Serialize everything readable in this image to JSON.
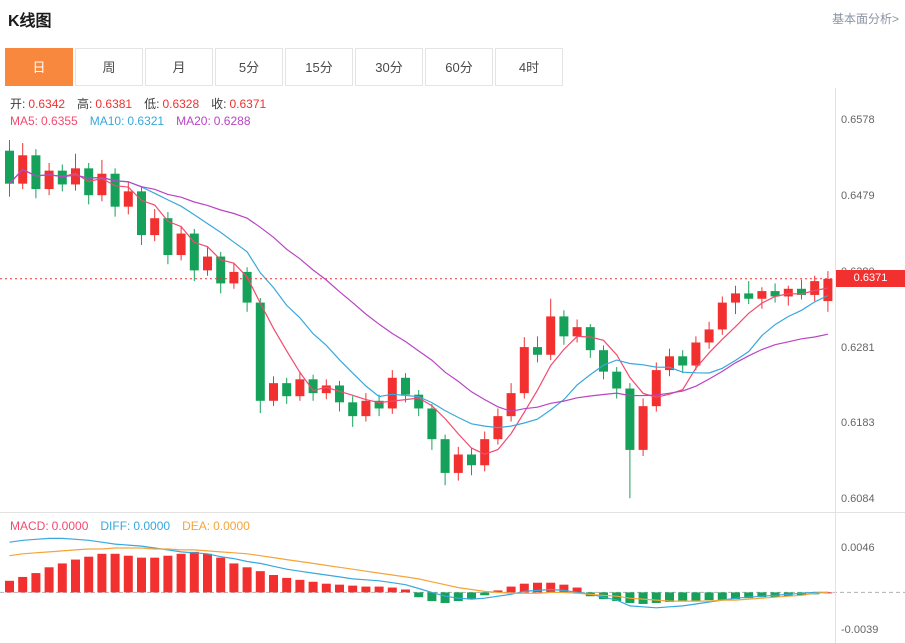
{
  "header": {
    "title": "K线图",
    "analysis_link": "基本面分析>"
  },
  "tabs": [
    {
      "label": "日",
      "active": true
    },
    {
      "label": "周",
      "active": false
    },
    {
      "label": "月",
      "active": false
    },
    {
      "label": "5分",
      "active": false
    },
    {
      "label": "15分",
      "active": false
    },
    {
      "label": "30分",
      "active": false
    },
    {
      "label": "60分",
      "active": false
    },
    {
      "label": "4时",
      "active": false
    }
  ],
  "colors": {
    "up": "#f23030",
    "down": "#16a15a",
    "accent": "#f7883e",
    "ma5": "#f24a6e",
    "ma10": "#38a8dd",
    "ma20": "#b944c4",
    "diff": "#38a8dd",
    "dea": "#f5a43a",
    "price_line": "#f23030",
    "axis_text": "#666666"
  },
  "ohlc_legend": [
    {
      "label": "开:",
      "value": "0.6342"
    },
    {
      "label": "高:",
      "value": "0.6381"
    },
    {
      "label": "低:",
      "value": "0.6328"
    },
    {
      "label": "收:",
      "value": "0.6371"
    }
  ],
  "ma_legend": [
    {
      "label": "MA5:",
      "value": "0.6355",
      "color": "#f24a6e"
    },
    {
      "label": "MA10:",
      "value": "0.6321",
      "color": "#38a8dd"
    },
    {
      "label": "MA20:",
      "value": "0.6288",
      "color": "#b944c4"
    }
  ],
  "price_axis": {
    "ticks": [
      {
        "value": 0.6578,
        "label": "0.6578"
      },
      {
        "value": 0.6479,
        "label": "0.6479"
      },
      {
        "value": 0.638,
        "label": "0.6380"
      },
      {
        "value": 0.6281,
        "label": "0.6281"
      },
      {
        "value": 0.6183,
        "label": "0.6183"
      },
      {
        "value": 0.6084,
        "label": "0.6084"
      }
    ],
    "max": 0.6578,
    "min": 0.6084,
    "current_label": "0.6371",
    "current_value": 0.6371
  },
  "macd_panel": {
    "legend": [
      {
        "label": "MACD:",
        "value": "0.0000",
        "color": "#f24a6e"
      },
      {
        "label": "DIFF:",
        "value": "0.0000",
        "color": "#38a8dd"
      },
      {
        "label": "DEA:",
        "value": "0.0000",
        "color": "#f5a43a"
      }
    ],
    "axis": {
      "max": 0.0046,
      "min": -0.0039,
      "ticks": [
        {
          "value": 0.0046,
          "label": "0.0046"
        },
        {
          "value": -0.0039,
          "label": "-0.0039"
        }
      ]
    }
  },
  "chart_data": [
    {
      "type": "candlestick",
      "title": "K线图 (日)",
      "ylim": [
        0.6084,
        0.6578
      ],
      "y_ticks": [
        0.6578,
        0.6479,
        0.638,
        0.6281,
        0.6183,
        0.6084
      ],
      "last_price": 0.6371,
      "ma_periods": [
        5,
        10,
        20
      ],
      "ohlc": [
        [
          0.6538,
          0.6552,
          0.6478,
          0.6495
        ],
        [
          0.6495,
          0.6548,
          0.6488,
          0.6532
        ],
        [
          0.6532,
          0.654,
          0.6476,
          0.6488
        ],
        [
          0.6488,
          0.6522,
          0.648,
          0.6512
        ],
        [
          0.6512,
          0.652,
          0.6485,
          0.6494
        ],
        [
          0.6494,
          0.6534,
          0.6486,
          0.6515
        ],
        [
          0.6515,
          0.6522,
          0.6468,
          0.648
        ],
        [
          0.648,
          0.6526,
          0.6472,
          0.6508
        ],
        [
          0.6508,
          0.6515,
          0.6452,
          0.6465
        ],
        [
          0.6465,
          0.6498,
          0.6455,
          0.6485
        ],
        [
          0.6485,
          0.6492,
          0.6415,
          0.6428
        ],
        [
          0.6428,
          0.6462,
          0.642,
          0.645
        ],
        [
          0.645,
          0.6458,
          0.639,
          0.6402
        ],
        [
          0.6402,
          0.644,
          0.6395,
          0.643
        ],
        [
          0.643,
          0.6436,
          0.6368,
          0.6382
        ],
        [
          0.6382,
          0.6412,
          0.6375,
          0.64
        ],
        [
          0.64,
          0.6406,
          0.6352,
          0.6365
        ],
        [
          0.6365,
          0.6392,
          0.6358,
          0.638
        ],
        [
          0.638,
          0.6386,
          0.6328,
          0.634
        ],
        [
          0.634,
          0.6346,
          0.6196,
          0.6212
        ],
        [
          0.6212,
          0.6244,
          0.6205,
          0.6235
        ],
        [
          0.6235,
          0.6242,
          0.6208,
          0.6218
        ],
        [
          0.6218,
          0.625,
          0.6212,
          0.624
        ],
        [
          0.624,
          0.6246,
          0.6212,
          0.6222
        ],
        [
          0.6222,
          0.624,
          0.6214,
          0.6232
        ],
        [
          0.6232,
          0.6238,
          0.6198,
          0.621
        ],
        [
          0.621,
          0.6218,
          0.6178,
          0.6192
        ],
        [
          0.6192,
          0.6222,
          0.6185,
          0.6212
        ],
        [
          0.6212,
          0.622,
          0.6192,
          0.6202
        ],
        [
          0.6202,
          0.6252,
          0.6195,
          0.6242
        ],
        [
          0.6242,
          0.6248,
          0.621,
          0.622
        ],
        [
          0.622,
          0.6226,
          0.6192,
          0.6202
        ],
        [
          0.6202,
          0.6208,
          0.6148,
          0.6162
        ],
        [
          0.6162,
          0.6168,
          0.6102,
          0.6118
        ],
        [
          0.6118,
          0.6152,
          0.6108,
          0.6142
        ],
        [
          0.6142,
          0.615,
          0.6115,
          0.6128
        ],
        [
          0.6128,
          0.6172,
          0.612,
          0.6162
        ],
        [
          0.6162,
          0.6202,
          0.6155,
          0.6192
        ],
        [
          0.6192,
          0.6235,
          0.6185,
          0.6222
        ],
        [
          0.6222,
          0.6295,
          0.6215,
          0.6282
        ],
        [
          0.6282,
          0.6296,
          0.6262,
          0.6272
        ],
        [
          0.6272,
          0.6345,
          0.6265,
          0.6322
        ],
        [
          0.6322,
          0.633,
          0.6285,
          0.6296
        ],
        [
          0.6296,
          0.6318,
          0.6288,
          0.6308
        ],
        [
          0.6308,
          0.6312,
          0.6268,
          0.6278
        ],
        [
          0.6278,
          0.6284,
          0.624,
          0.625
        ],
        [
          0.625,
          0.6256,
          0.6215,
          0.6228
        ],
        [
          0.6228,
          0.6235,
          0.6085,
          0.6148
        ],
        [
          0.6148,
          0.6215,
          0.614,
          0.6205
        ],
        [
          0.6205,
          0.6262,
          0.6198,
          0.6252
        ],
        [
          0.6252,
          0.628,
          0.6244,
          0.627
        ],
        [
          0.627,
          0.6278,
          0.6248,
          0.6258
        ],
        [
          0.6258,
          0.6296,
          0.6252,
          0.6288
        ],
        [
          0.6288,
          0.6315,
          0.628,
          0.6305
        ],
        [
          0.6305,
          0.6348,
          0.6298,
          0.634
        ],
        [
          0.634,
          0.6362,
          0.6325,
          0.6352
        ],
        [
          0.6352,
          0.6368,
          0.6338,
          0.6345
        ],
        [
          0.6345,
          0.636,
          0.6332,
          0.6355
        ],
        [
          0.6355,
          0.6365,
          0.634,
          0.6348
        ],
        [
          0.6348,
          0.6362,
          0.6336,
          0.6358
        ],
        [
          0.6358,
          0.637,
          0.6344,
          0.635
        ],
        [
          0.635,
          0.6375,
          0.6342,
          0.6368
        ],
        [
          0.6342,
          0.6381,
          0.6328,
          0.6371
        ]
      ]
    },
    {
      "type": "bar",
      "title": "MACD",
      "ylim": [
        -0.0039,
        0.0046
      ],
      "values": [
        0.0012,
        0.0016,
        0.002,
        0.0026,
        0.003,
        0.0034,
        0.0037,
        0.004,
        0.004,
        0.0038,
        0.0036,
        0.0036,
        0.0038,
        0.004,
        0.0042,
        0.004,
        0.0036,
        0.003,
        0.0026,
        0.0022,
        0.0018,
        0.0015,
        0.0013,
        0.0011,
        0.0009,
        0.0008,
        0.0007,
        0.0006,
        0.0006,
        0.0005,
        0.0003,
        -0.0005,
        -0.0009,
        -0.0011,
        -0.0009,
        -0.0007,
        -0.0003,
        0.0002,
        0.0006,
        0.0009,
        0.001,
        0.001,
        0.0008,
        0.0005,
        -0.0004,
        -0.0007,
        -0.0009,
        -0.0011,
        -0.0012,
        -0.0011,
        -0.001,
        -0.0009,
        -0.0009,
        -0.0008,
        -0.0008,
        -0.0007,
        -0.0006,
        -0.0005,
        -0.0005,
        -0.0004,
        -0.0003,
        -0.0002,
        0.0
      ],
      "series": [
        {
          "name": "DIFF",
          "values": [
            0.0052,
            0.0054,
            0.0055,
            0.0056,
            0.0056,
            0.0055,
            0.0054,
            0.0052,
            0.005,
            0.0049,
            0.0048,
            0.0046,
            0.0044,
            0.0042,
            0.0041,
            0.004,
            0.0037,
            0.0035,
            0.0032,
            0.003,
            0.0027,
            0.0024,
            0.0022,
            0.002,
            0.0018,
            0.0016,
            0.0014,
            0.0013,
            0.0012,
            0.001,
            0.0008,
            0.0004,
            0.0,
            -0.0004,
            -0.0006,
            -0.0007,
            -0.0006,
            -0.0004,
            -0.0002,
            0.0001,
            0.0002,
            0.0003,
            0.0002,
            0.0,
            -0.0002,
            -0.0005,
            -0.0008,
            -0.0014,
            -0.0015,
            -0.0016,
            -0.0015,
            -0.0014,
            -0.0012,
            -0.001,
            -0.0008,
            -0.0006,
            -0.0005,
            -0.0004,
            -0.0003,
            -0.0002,
            -0.0001,
            0.0,
            0.0
          ]
        },
        {
          "name": "DEA",
          "values": [
            0.0038,
            0.004,
            0.0041,
            0.0042,
            0.0043,
            0.0044,
            0.0045,
            0.0045,
            0.0046,
            0.0046,
            0.0046,
            0.0045,
            0.0045,
            0.0044,
            0.0044,
            0.0043,
            0.0042,
            0.0041,
            0.004,
            0.0038,
            0.0036,
            0.0034,
            0.0032,
            0.003,
            0.0028,
            0.0026,
            0.0024,
            0.0022,
            0.002,
            0.0018,
            0.0016,
            0.0014,
            0.0011,
            0.0008,
            0.0005,
            0.0003,
            0.0001,
            0.0,
            -0.0001,
            -0.0001,
            -0.0001,
            0.0,
            0.0,
            -0.0001,
            -0.0002,
            -0.0003,
            -0.0004,
            -0.0006,
            -0.0007,
            -0.0008,
            -0.0009,
            -0.0009,
            -0.0009,
            -0.0009,
            -0.0008,
            -0.0008,
            -0.0007,
            -0.0006,
            -0.0005,
            -0.0004,
            -0.0003,
            -0.0001,
            0.0
          ]
        }
      ]
    }
  ]
}
